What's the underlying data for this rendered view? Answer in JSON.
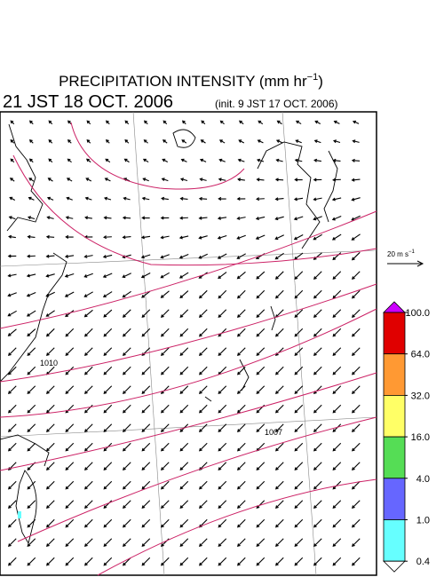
{
  "header": {
    "title": "PRECIPITATION INTENSITY (mm hr",
    "title_exponent": "−1",
    "title_close": ")",
    "valid_time": "21 JST 18 OCT. 2006",
    "init_time": "(init. 9 JST 17 OCT. 2006)"
  },
  "vector_key": {
    "label": "20 m s",
    "exponent": "−1"
  },
  "contour_labels": [
    "1010",
    "1007"
  ],
  "colorbar": {
    "ticks": [
      {
        "value": 100,
        "label": "100.0"
      },
      {
        "value": 64,
        "label": "64.0"
      },
      {
        "value": 32,
        "label": "32.0"
      },
      {
        "value": 16,
        "label": "16.0"
      },
      {
        "value": 4,
        "label": "4.0"
      },
      {
        "value": 1,
        "label": "1.0"
      },
      {
        "value": 0.4,
        "label": "0.4"
      }
    ],
    "colors": [
      "#e00000",
      "#ff9933",
      "#ffff66",
      "#55dd55",
      "#6666ff",
      "#66ffff"
    ],
    "over_color": "#cc00ff",
    "under_color": "#ffffff"
  }
}
